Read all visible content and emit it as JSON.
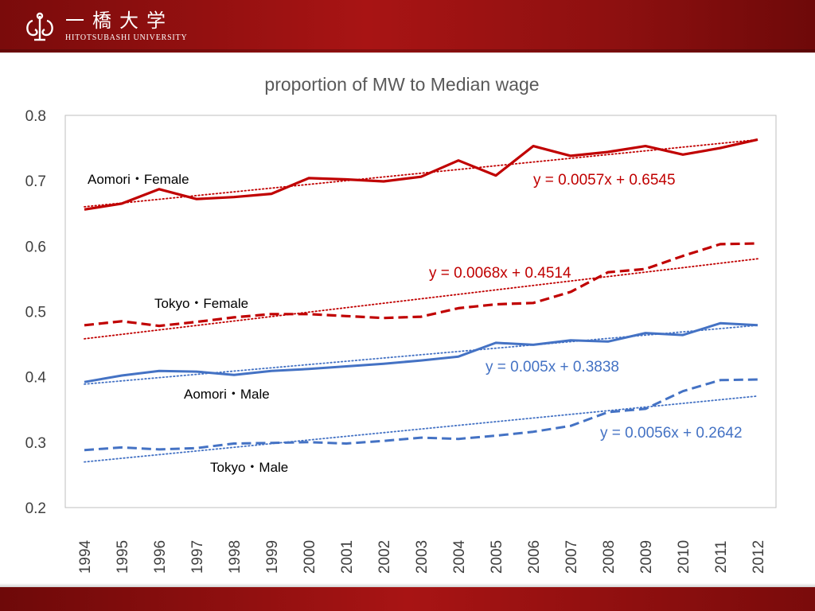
{
  "header": {
    "logo_jp": "一橋大学",
    "logo_en": "HITOTSUBASHI UNIVERSITY",
    "logo_icon": "hitotsubashi-emblem-icon"
  },
  "colors": {
    "header_red": "#a81414",
    "female_red": "#c00000",
    "male_blue": "#4472c4",
    "eq_red": "#c00000",
    "eq_blue": "#4472c4"
  },
  "chart_data": {
    "type": "line",
    "title": "proportion of MW to Median wage",
    "xlabel": "",
    "ylabel": "",
    "ylim": [
      0.2,
      0.8
    ],
    "yticks": [
      "0.8",
      "0.7",
      "0.6",
      "0.5",
      "0.4",
      "0.3",
      "0.2"
    ],
    "categories": [
      "1994",
      "1995",
      "1996",
      "1997",
      "1998",
      "1999",
      "2000",
      "2001",
      "2002",
      "2003",
      "2004",
      "2005",
      "2006",
      "2007",
      "2008",
      "2009",
      "2010",
      "2011",
      "2012"
    ],
    "series": [
      {
        "name": "Aomori・Female",
        "style": "solid",
        "color": "#c00000",
        "values": [
          0.656,
          0.665,
          0.687,
          0.672,
          0.675,
          0.68,
          0.704,
          0.702,
          0.699,
          0.706,
          0.731,
          0.708,
          0.753,
          0.738,
          0.744,
          0.753,
          0.74,
          0.75,
          0.763
        ],
        "trendline": {
          "equation": "y = 0.0057x + 0.6545",
          "slope": 0.0057,
          "intercept": 0.6545
        }
      },
      {
        "name": "Tokyo・Female",
        "style": "dashed",
        "color": "#c00000",
        "values": [
          0.479,
          0.485,
          0.478,
          0.484,
          0.491,
          0.496,
          0.496,
          0.493,
          0.49,
          0.492,
          0.505,
          0.511,
          0.513,
          0.53,
          0.56,
          0.565,
          0.585,
          0.603,
          0.604
        ],
        "trendline": {
          "equation": "y = 0.0068x + 0.4514",
          "slope": 0.0068,
          "intercept": 0.4514
        }
      },
      {
        "name": "Aomori・Male",
        "style": "solid",
        "color": "#4472c4",
        "values": [
          0.392,
          0.402,
          0.409,
          0.408,
          0.403,
          0.409,
          0.412,
          0.416,
          0.42,
          0.425,
          0.431,
          0.452,
          0.449,
          0.456,
          0.454,
          0.467,
          0.464,
          0.482,
          0.479
        ],
        "trendline": {
          "equation": "y = 0.005x + 0.3838",
          "slope": 0.005,
          "intercept": 0.3838
        }
      },
      {
        "name": "Tokyo・Male",
        "style": "dashed",
        "color": "#4472c4",
        "values": [
          0.288,
          0.292,
          0.289,
          0.291,
          0.298,
          0.299,
          0.3,
          0.298,
          0.302,
          0.307,
          0.305,
          0.31,
          0.316,
          0.325,
          0.346,
          0.351,
          0.378,
          0.395,
          0.396
        ],
        "trendline": {
          "equation": "y = 0.0056x + 0.2642",
          "slope": 0.0056,
          "intercept": 0.2642
        }
      }
    ]
  }
}
